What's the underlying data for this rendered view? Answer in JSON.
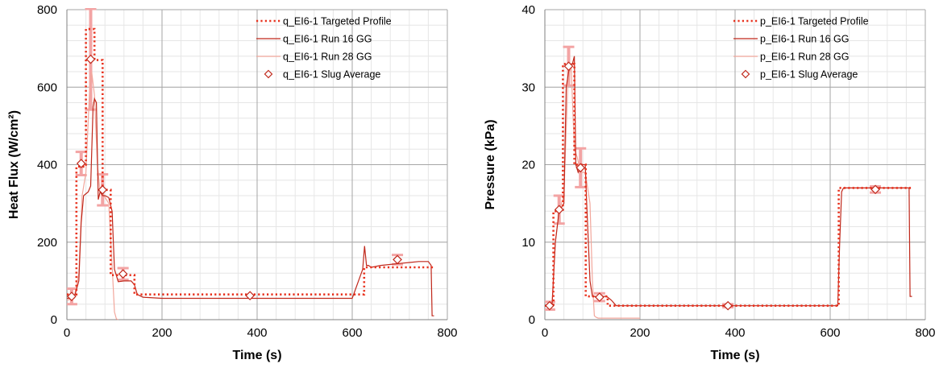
{
  "chart_data": [
    {
      "type": "line",
      "xlabel": "Time (s)",
      "ylabel": "Heat Flux (W/cm²)",
      "xlim": [
        0,
        800
      ],
      "ylim": [
        0,
        800
      ],
      "xticks": [
        "0",
        "200",
        "400",
        "600",
        "800"
      ],
      "yticks": [
        "0",
        "200",
        "400",
        "600",
        "800"
      ],
      "grid": true,
      "legend_position": "top-right",
      "colors": {
        "targeted": "#e8321e",
        "run16": "#c0281b",
        "run28": "#f2a79c",
        "slug": "#c0281b",
        "errorbar": "#f3a4a4"
      },
      "series": [
        {
          "name": "q_EI6-1 Targeted Profile",
          "style": "dotted",
          "x": [
            0,
            10,
            20,
            20,
            40,
            40,
            58,
            58,
            75,
            75,
            92,
            92,
            102,
            102,
            142,
            142,
            625,
            625,
            772
          ],
          "y": [
            65,
            65,
            65,
            395,
            395,
            750,
            750,
            670,
            670,
            335,
            335,
            115,
            115,
            115,
            115,
            65,
            65,
            135,
            135
          ]
        },
        {
          "name": "q_EI6-1 Run 16 GG",
          "style": "solid",
          "x": [
            0,
            15,
            25,
            30,
            35,
            45,
            50,
            55,
            58,
            62,
            66,
            70,
            75,
            80,
            88,
            95,
            100,
            108,
            120,
            135,
            142,
            148,
            160,
            200,
            300,
            400,
            500,
            600,
            622,
            626,
            630,
            634,
            640,
            660,
            700,
            740,
            760,
            766,
            768,
            772
          ],
          "y": [
            55,
            55,
            100,
            250,
            320,
            330,
            345,
            550,
            570,
            560,
            310,
            330,
            320,
            320,
            315,
            280,
            130,
            98,
            100,
            100,
            90,
            65,
            58,
            55,
            55,
            55,
            55,
            55,
            130,
            190,
            140,
            140,
            135,
            140,
            145,
            150,
            150,
            140,
            10,
            10
          ]
        },
        {
          "name": "q_EI6-1 Run 28 GG",
          "style": "solid",
          "x": [
            0,
            15,
            25,
            32,
            40,
            48,
            52,
            58,
            64,
            70,
            78,
            88,
            96,
            100,
            104,
            108
          ],
          "y": [
            50,
            55,
            120,
            320,
            380,
            600,
            640,
            580,
            400,
            330,
            320,
            300,
            120,
            20,
            2,
            0
          ]
        },
        {
          "name": "q_EI6-1 Slug Average",
          "style": "marker",
          "x": [
            10,
            30,
            50,
            75,
            118,
            385,
            695
          ],
          "y": [
            60,
            403,
            672,
            335,
            118,
            62,
            155
          ],
          "err": [
            20,
            30,
            130,
            40,
            15,
            0,
            12
          ]
        }
      ]
    },
    {
      "type": "line",
      "xlabel": "Time (s)",
      "ylabel": "Pressure (kPa)",
      "xlim": [
        0,
        800
      ],
      "ylim": [
        0,
        40
      ],
      "xticks": [
        "0",
        "200",
        "400",
        "600",
        "800"
      ],
      "yticks": [
        "0",
        "10",
        "20",
        "30",
        "40"
      ],
      "grid": true,
      "legend_position": "top-right",
      "colors": {
        "targeted": "#e8321e",
        "run16": "#c0281b",
        "run28": "#f2a79c",
        "slug": "#c0281b",
        "errorbar": "#f3a4a4"
      },
      "series": [
        {
          "name": "p_EI6-1 Targeted Profile",
          "style": "dotted",
          "x": [
            0,
            18,
            18,
            38,
            38,
            62,
            62,
            86,
            86,
            132,
            132,
            618,
            618,
            772
          ],
          "y": [
            1.8,
            1.8,
            14,
            14,
            33,
            33,
            20,
            20,
            3,
            3,
            1.8,
            1.8,
            17,
            17
          ]
        },
        {
          "name": "p_EI6-1 Run 16 GG",
          "style": "solid",
          "x": [
            0,
            15,
            22,
            30,
            40,
            45,
            50,
            55,
            58,
            62,
            65,
            70,
            78,
            85,
            88,
            95,
            100,
            110,
            130,
            140,
            150,
            200,
            400,
            600,
            616,
            620,
            624,
            628,
            700,
            760,
            766,
            768,
            772
          ],
          "y": [
            1.8,
            1.8,
            10,
            14,
            15,
            30,
            32,
            33,
            33,
            34,
            20,
            19,
            20,
            20,
            15,
            5,
            3,
            3,
            3,
            2.5,
            1.8,
            1.8,
            1.8,
            1.8,
            1.8,
            10,
            16.5,
            17,
            17,
            17,
            17,
            3,
            3
          ]
        },
        {
          "name": "p_EI6-1 Run 28 GG",
          "style": "solid",
          "x": [
            0,
            15,
            22,
            30,
            40,
            48,
            55,
            62,
            68,
            75,
            85,
            95,
            100,
            104,
            108,
            112,
            200
          ],
          "y": [
            1.8,
            2,
            10,
            14,
            16,
            30,
            33,
            22,
            21,
            19,
            19,
            15,
            5,
            0.5,
            0.3,
            0.2,
            0.2
          ]
        },
        {
          "name": "p_EI6-1 Slug Average",
          "style": "marker",
          "x": [
            10,
            30,
            50,
            75,
            115,
            385,
            695
          ],
          "y": [
            1.8,
            14.2,
            32.7,
            19.6,
            2.9,
            1.8,
            16.8
          ],
          "err": [
            0.5,
            1.8,
            2.5,
            2.5,
            0.5,
            0.2,
            0.4
          ]
        }
      ]
    }
  ]
}
